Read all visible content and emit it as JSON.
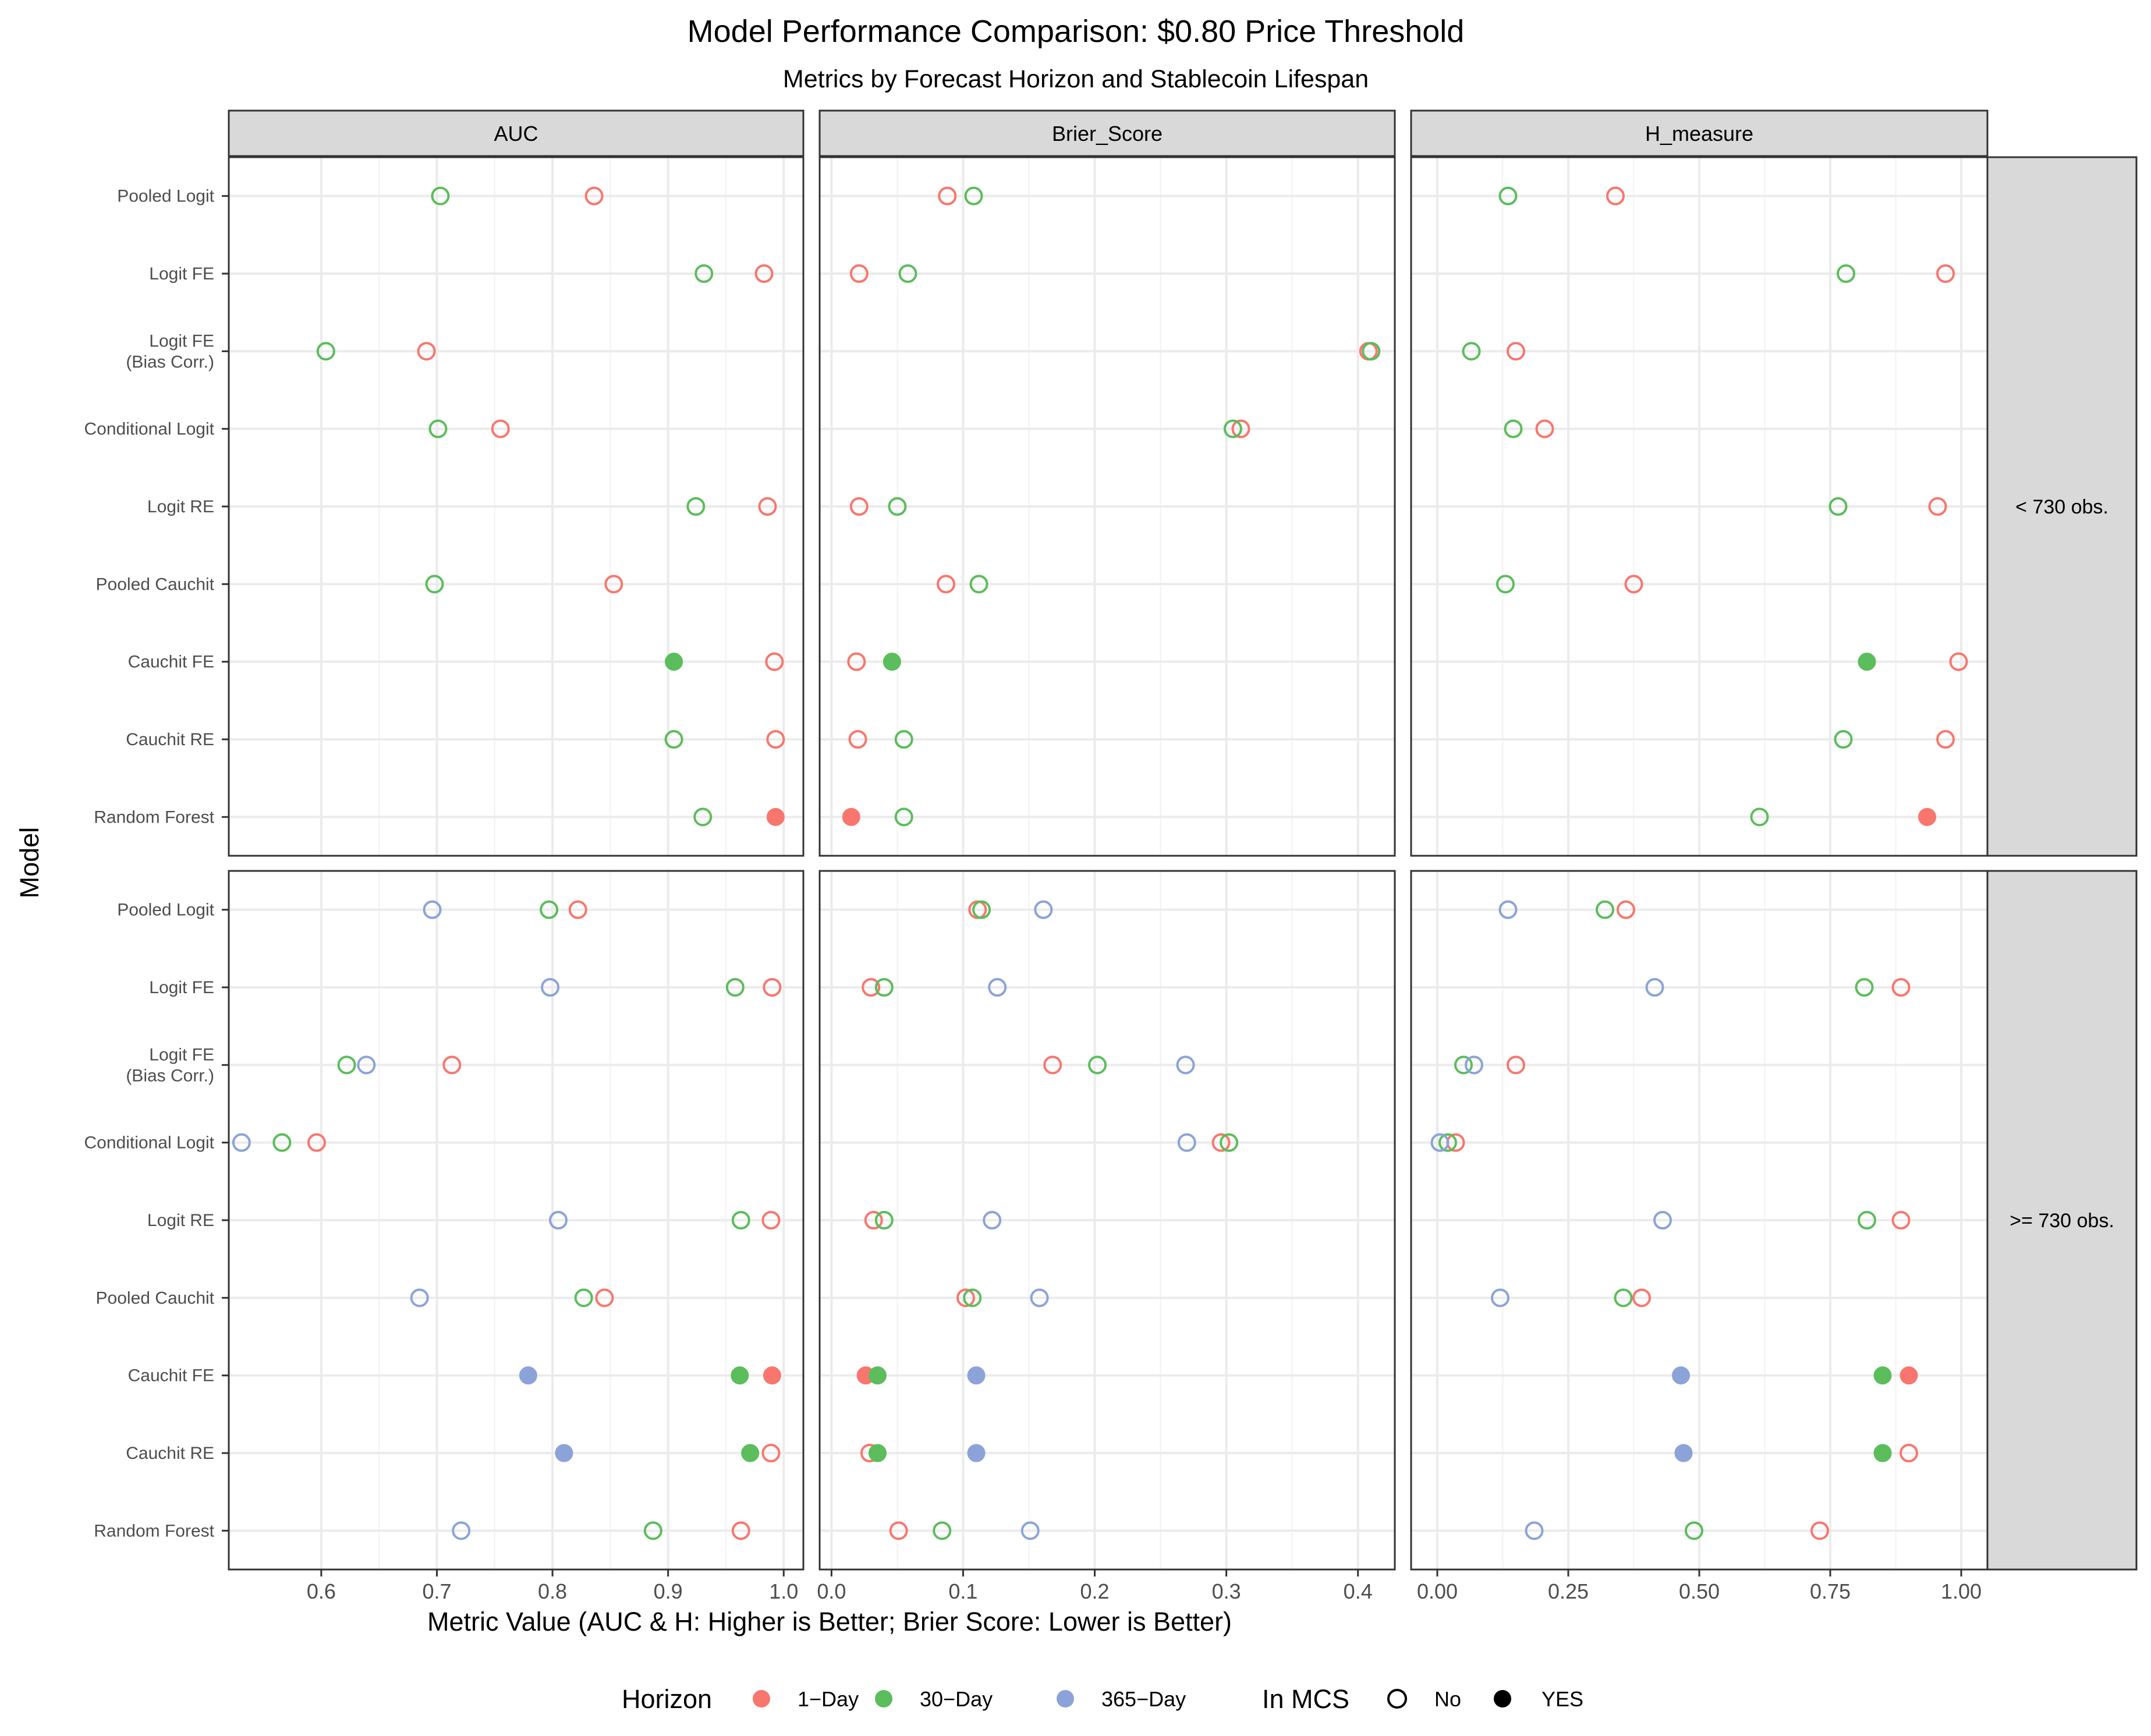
{
  "chart_data": {
    "type": "scatter",
    "title": "Model Performance Comparison: $0.80 Price Threshold",
    "subtitle": "Metrics by Forecast Horizon and Stablecoin Lifespan",
    "xlabel": "Metric Value (AUC & H: Higher is Better; Brier Score: Lower is Better)",
    "ylabel": "Model",
    "grid": true,
    "models": [
      "Pooled Logit",
      "Logit FE",
      "Logit FE\n(Bias Corr.)",
      "Conditional Logit",
      "Logit RE",
      "Pooled Cauchit",
      "Cauchit FE",
      "Cauchit RE",
      "Random Forest"
    ],
    "horizons": [
      {
        "name": "1−Day",
        "color": "#F8766D"
      },
      {
        "name": "30−Day",
        "color": "#5BBD5B"
      },
      {
        "name": "365−Day",
        "color": "#8BA3D8"
      }
    ],
    "mcs": {
      "title": "In MCS",
      "no": "No",
      "yes": "YES"
    },
    "legend": {
      "title": "Horizon",
      "placement": "bottom"
    },
    "columns": [
      {
        "name": "AUC",
        "xlim": [
          0.52,
          1.017
        ],
        "ticks": [
          0.6,
          0.7,
          0.8,
          0.9,
          1.0
        ],
        "tick_labels": [
          "0.6",
          "0.7",
          "0.8",
          "0.9",
          "1.0"
        ]
      },
      {
        "name": "Brier_Score",
        "xlim": [
          -0.009,
          0.428
        ],
        "ticks": [
          0.0,
          0.1,
          0.2,
          0.3,
          0.4
        ],
        "tick_labels": [
          "0.0",
          "0.1",
          "0.2",
          "0.3",
          "0.4"
        ]
      },
      {
        "name": "H_measure",
        "xlim": [
          -0.05,
          1.05
        ],
        "ticks": [
          0.0,
          0.25,
          0.5,
          0.75,
          1.0
        ],
        "tick_labels": [
          "0.00",
          "0.25",
          "0.50",
          "0.75",
          "1.00"
        ]
      }
    ],
    "rows": [
      {
        "label": "< 730 obs.",
        "points": {
          "AUC": {
            "1−Day": [
              [
                0.836,
                0
              ],
              [
                0.983,
                0
              ],
              [
                0.691,
                0
              ],
              [
                0.755,
                0
              ],
              [
                0.986,
                0
              ],
              [
                0.853,
                0
              ],
              [
                0.992,
                0
              ],
              [
                0.993,
                0
              ],
              [
                0.993,
                1
              ]
            ],
            "30−Day": [
              [
                0.703,
                0
              ],
              [
                0.931,
                0
              ],
              [
                0.604,
                0
              ],
              [
                0.701,
                0
              ],
              [
                0.924,
                0
              ],
              [
                0.698,
                0
              ],
              [
                0.905,
                1
              ],
              [
                0.905,
                0
              ],
              [
                0.93,
                0
              ]
            ]
          },
          "Brier_Score": {
            "1−Day": [
              [
                0.088,
                0
              ],
              [
                0.021,
                0
              ],
              [
                0.408,
                0
              ],
              [
                0.311,
                0
              ],
              [
                0.021,
                0
              ],
              [
                0.087,
                0
              ],
              [
                0.019,
                0
              ],
              [
                0.02,
                0
              ],
              [
                0.015,
                1
              ]
            ],
            "30−Day": [
              [
                0.108,
                0
              ],
              [
                0.058,
                0
              ],
              [
                0.41,
                0
              ],
              [
                0.305,
                0
              ],
              [
                0.05,
                0
              ],
              [
                0.112,
                0
              ],
              [
                0.046,
                1
              ],
              [
                0.055,
                0
              ],
              [
                0.055,
                0
              ]
            ]
          },
          "H_measure": {
            "1−Day": [
              [
                0.34,
                0
              ],
              [
                0.97,
                0
              ],
              [
                0.15,
                0
              ],
              [
                0.205,
                0
              ],
              [
                0.955,
                0
              ],
              [
                0.375,
                0
              ],
              [
                0.995,
                0
              ],
              [
                0.97,
                0
              ],
              [
                0.935,
                1
              ]
            ],
            "30−Day": [
              [
                0.135,
                0
              ],
              [
                0.78,
                0
              ],
              [
                0.065,
                0
              ],
              [
                0.145,
                0
              ],
              [
                0.765,
                0
              ],
              [
                0.13,
                0
              ],
              [
                0.82,
                1
              ],
              [
                0.775,
                0
              ],
              [
                0.615,
                0
              ]
            ]
          }
        }
      },
      {
        "label": ">= 730 obs.",
        "points": {
          "AUC": {
            "1−Day": [
              [
                0.822,
                0
              ],
              [
                0.99,
                0
              ],
              [
                0.713,
                0
              ],
              [
                0.596,
                0
              ],
              [
                0.989,
                0
              ],
              [
                0.845,
                0
              ],
              [
                0.99,
                1
              ],
              [
                0.989,
                0
              ],
              [
                0.963,
                0
              ]
            ],
            "30−Day": [
              [
                0.797,
                0
              ],
              [
                0.958,
                0
              ],
              [
                0.622,
                0
              ],
              [
                0.566,
                0
              ],
              [
                0.963,
                0
              ],
              [
                0.827,
                0
              ],
              [
                0.962,
                1
              ],
              [
                0.971,
                1
              ],
              [
                0.887,
                0
              ]
            ],
            "365−Day": [
              [
                0.696,
                0
              ],
              [
                0.798,
                0
              ],
              [
                0.639,
                0
              ],
              [
                0.531,
                0
              ],
              [
                0.805,
                0
              ],
              [
                0.685,
                0
              ],
              [
                0.779,
                1
              ],
              [
                0.81,
                1
              ],
              [
                0.721,
                0
              ]
            ]
          },
          "Brier_Score": {
            "1−Day": [
              [
                0.111,
                0
              ],
              [
                0.03,
                0
              ],
              [
                0.168,
                0
              ],
              [
                0.296,
                0
              ],
              [
                0.032,
                0
              ],
              [
                0.102,
                0
              ],
              [
                0.026,
                1
              ],
              [
                0.029,
                0
              ],
              [
                0.051,
                0
              ]
            ],
            "30−Day": [
              [
                0.114,
                0
              ],
              [
                0.04,
                0
              ],
              [
                0.202,
                0
              ],
              [
                0.302,
                0
              ],
              [
                0.04,
                0
              ],
              [
                0.107,
                0
              ],
              [
                0.035,
                1
              ],
              [
                0.035,
                1
              ],
              [
                0.084,
                0
              ]
            ],
            "365−Day": [
              [
                0.161,
                0
              ],
              [
                0.126,
                0
              ],
              [
                0.269,
                0
              ],
              [
                0.27,
                0
              ],
              [
                0.122,
                0
              ],
              [
                0.158,
                0
              ],
              [
                0.11,
                1
              ],
              [
                0.11,
                1
              ],
              [
                0.151,
                0
              ]
            ]
          },
          "H_measure": {
            "1−Day": [
              [
                0.36,
                0
              ],
              [
                0.885,
                0
              ],
              [
                0.15,
                0
              ],
              [
                0.035,
                0
              ],
              [
                0.885,
                0
              ],
              [
                0.39,
                0
              ],
              [
                0.9,
                1
              ],
              [
                0.9,
                0
              ],
              [
                0.73,
                0
              ]
            ],
            "30−Day": [
              [
                0.32,
                0
              ],
              [
                0.815,
                0
              ],
              [
                0.05,
                0
              ],
              [
                0.02,
                0
              ],
              [
                0.82,
                0
              ],
              [
                0.355,
                0
              ],
              [
                0.85,
                1
              ],
              [
                0.85,
                1
              ],
              [
                0.49,
                0
              ]
            ],
            "365−Day": [
              [
                0.135,
                0
              ],
              [
                0.415,
                0
              ],
              [
                0.07,
                0
              ],
              [
                0.005,
                0
              ],
              [
                0.43,
                0
              ],
              [
                0.12,
                0
              ],
              [
                0.465,
                1
              ],
              [
                0.47,
                1
              ],
              [
                0.185,
                0
              ]
            ]
          }
        }
      }
    ]
  }
}
